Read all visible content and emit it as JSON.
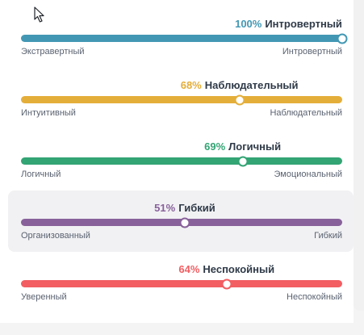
{
  "traits": [
    {
      "percent_text": "100%",
      "percent": 100,
      "name": "Интровертный",
      "left_label": "Экстравертный",
      "right_label": "Интровертный",
      "color": "#4298b4",
      "highlighted": false
    },
    {
      "percent_text": "68%",
      "percent": 68,
      "name": "Наблюдательный",
      "left_label": "Интуитивный",
      "right_label": "Наблюдательный",
      "color": "#e4ae3a",
      "highlighted": false
    },
    {
      "percent_text": "69%",
      "percent": 69,
      "name": "Логичный",
      "left_label": "Логичный",
      "right_label": "Эмоциональный",
      "color": "#33a474",
      "highlighted": false
    },
    {
      "percent_text": "51%",
      "percent": 51,
      "name": "Гибкий",
      "left_label": "Организованный",
      "right_label": "Гибкий",
      "color": "#88619a",
      "highlighted": true
    },
    {
      "percent_text": "64%",
      "percent": 64,
      "name": "Неспокойный",
      "left_label": "Уверенный",
      "right_label": "Неспокойный",
      "color": "#f25e62",
      "highlighted": false
    }
  ]
}
